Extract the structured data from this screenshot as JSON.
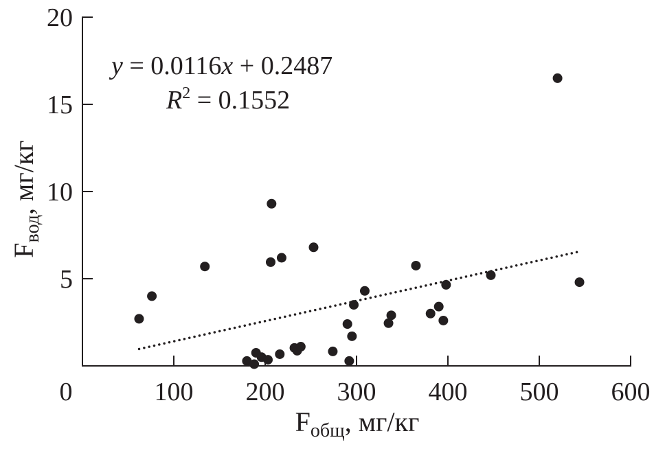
{
  "chart_data": {
    "type": "scatter",
    "xlabel": {
      "main": "F",
      "sub": "общ",
      "unit": ", мг/кг"
    },
    "ylabel": {
      "main": "F",
      "sub": "вод",
      "unit": ", мг/кг"
    },
    "xlim": [
      0,
      600
    ],
    "ylim": [
      0,
      20
    ],
    "xticks": [
      "0",
      "100",
      "200",
      "300",
      "400",
      "500",
      "600"
    ],
    "yticks": [
      "5",
      "10",
      "15",
      "20"
    ],
    "grid": false,
    "annotations": {
      "equation": {
        "y": "y",
        "eq": " = 0.0116",
        "x": "x",
        "rest": " + 0.2487"
      },
      "r2": {
        "r": "R",
        "sup": "2",
        "rest": " = 0.1552"
      }
    },
    "trendline": {
      "type": "linear",
      "slope": 0.0116,
      "intercept": 0.2487,
      "x_range": [
        62,
        544
      ],
      "style": "dotted"
    },
    "points": [
      [
        62,
        2.7
      ],
      [
        76,
        4.0
      ],
      [
        134,
        5.7
      ],
      [
        207,
        9.3
      ],
      [
        206,
        5.95
      ],
      [
        218,
        6.2
      ],
      [
        253,
        6.8
      ],
      [
        180,
        0.28
      ],
      [
        188,
        0.1
      ],
      [
        190,
        0.75
      ],
      [
        196,
        0.5
      ],
      [
        203,
        0.35
      ],
      [
        216,
        0.67
      ],
      [
        232,
        1.03
      ],
      [
        235,
        0.87
      ],
      [
        239,
        1.1
      ],
      [
        274,
        0.83
      ],
      [
        290,
        2.4
      ],
      [
        292,
        0.28
      ],
      [
        295,
        1.7
      ],
      [
        297,
        3.5
      ],
      [
        309,
        4.3
      ],
      [
        335,
        2.45
      ],
      [
        338,
        2.9
      ],
      [
        365,
        5.75
      ],
      [
        381,
        3.0
      ],
      [
        390,
        3.4
      ],
      [
        395,
        2.6
      ],
      [
        398,
        4.65
      ],
      [
        447,
        5.2
      ],
      [
        520,
        16.5
      ],
      [
        544,
        4.8
      ]
    ],
    "colors": {
      "marker": "#231f20",
      "axis": "#231f20"
    }
  }
}
